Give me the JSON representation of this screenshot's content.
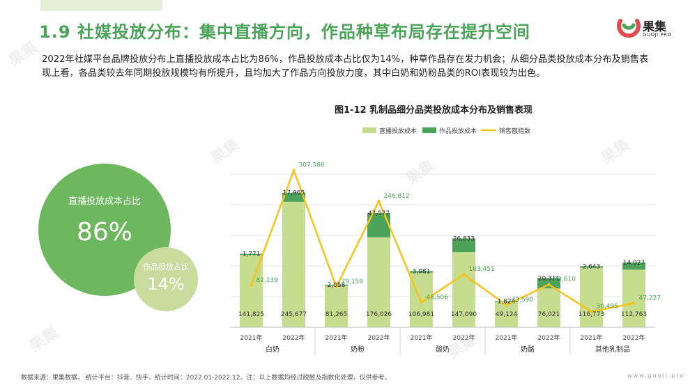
{
  "header": {
    "title": "1.9 社媒投放分布：集中直播方向，作品种草布局存在提升空间",
    "logo_text": "果集",
    "logo_url": "GUOJI.PRO"
  },
  "intro": "2022年社媒平台品牌投放分布上直播投放成本占比为86%，作品投放成本占比仅为14%，种草作品存在发力机会；从细分品类投放成本分布及销售表现上看，各品类较去年同期投放规模均有所提升，且均加大了作品方向投放力度，其中白奶和奶粉品类的ROI表现较为出色。",
  "bubbles": {
    "live_label": "直播投放成本占比",
    "live_value": "86%",
    "work_label": "作品投放占比",
    "work_value": "14%"
  },
  "chart_data": {
    "type": "bar",
    "title": "图1-12 乳制品细分品类投放成本分布及销售表现",
    "categories": [
      "2021年",
      "2022年",
      "2021年",
      "2022年",
      "2021年",
      "2022年",
      "2021年",
      "2022年",
      "2021年",
      "2022年"
    ],
    "groups": [
      "白奶",
      "奶粉",
      "酸奶",
      "奶酪",
      "其他乳制品"
    ],
    "series": [
      {
        "name": "直播投放成本",
        "kind": "bar-stack",
        "color": "#c6dc8e",
        "values": [
          141825,
          245677,
          81265,
          176026,
          106981,
          147090,
          49124,
          76021,
          116773,
          112763
        ],
        "labels": [
          "141,825",
          "245,677",
          "81,265",
          "176,026",
          "106,981",
          "147,090",
          "49,124",
          "76,021",
          "116,773",
          "112,763"
        ]
      },
      {
        "name": "作品投放成本",
        "kind": "bar-stack",
        "color": "#4aa358",
        "values": [
          1771,
          17965,
          2058,
          47577,
          3081,
          26833,
          1824,
          20311,
          2643,
          14027
        ],
        "labels": [
          "1,771",
          "17,965",
          "2,058",
          "47,577",
          "3,081",
          "26,833",
          "1,824",
          "20,311",
          "2,643",
          "14,027"
        ]
      },
      {
        "name": "销售额指数",
        "kind": "line",
        "color": "#f7c31a",
        "values": [
          82139,
          307386,
          79159,
          246812,
          48506,
          103451,
          43590,
          83610,
          30495,
          47227
        ],
        "labels": [
          "82,139",
          "307,386",
          "79,159",
          "246,812",
          "48,506",
          "103,451",
          "43,590",
          "83,610",
          "30,495",
          "47,227"
        ]
      }
    ],
    "legend_position": "top",
    "grid": true
  },
  "footnote": "数据来源：果集数据， 统计平台：抖音、快手，统计时间：2022.01-2022.12。注：以上数据均经过脱敏及指数化处理，仅供参考。",
  "footer_url": "www.guoji.pro"
}
